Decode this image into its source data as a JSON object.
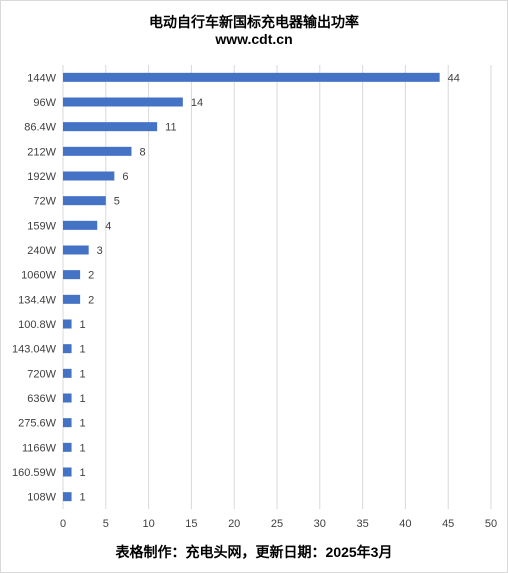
{
  "chart_data": {
    "type": "bar",
    "orientation": "horizontal",
    "title": "电动自行车新国标充电器输出功率",
    "subtitle": "www.cdt.cn",
    "footer": "表格制作：充电头网，更新日期：2025年3月",
    "categories": [
      "144W",
      "96W",
      "86.4W",
      "212W",
      "192W",
      "72W",
      "159W",
      "240W",
      "1060W",
      "134.4W",
      "100.8W",
      "143.04W",
      "720W",
      "636W",
      "275.6W",
      "1166W",
      "160.59W",
      "108W"
    ],
    "values": [
      44,
      14,
      11,
      8,
      6,
      5,
      4,
      3,
      2,
      2,
      1,
      1,
      1,
      1,
      1,
      1,
      1,
      1
    ],
    "xlim": [
      0,
      50
    ],
    "xticks": [
      0,
      5,
      10,
      15,
      20,
      25,
      30,
      35,
      40,
      45,
      50
    ],
    "grid": "vertical",
    "bar_color": "#4472c4",
    "data_labels": true
  }
}
